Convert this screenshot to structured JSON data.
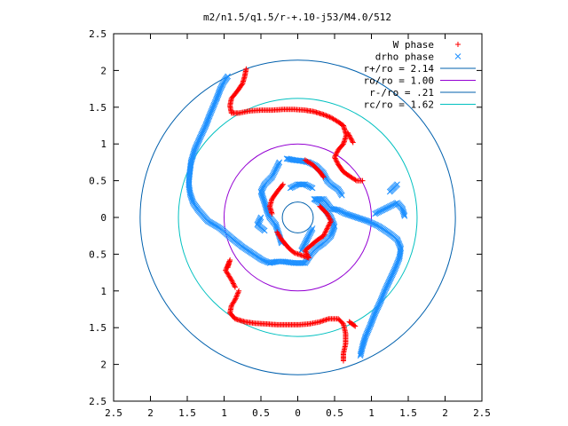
{
  "chart_data": {
    "type": "scatter",
    "title": "m2/n1.5/q1.5/r-+.10-j53/M4.0/512",
    "xlabel": "",
    "ylabel": "",
    "xlim": [
      -2.5,
      2.5
    ],
    "ylim": [
      -2.5,
      2.5
    ],
    "x_ticks": [
      -2.5,
      -2,
      -1.5,
      -1,
      -0.5,
      0,
      0.5,
      1,
      1.5,
      2,
      2.5
    ],
    "x_tick_labels": [
      "2.5",
      "2",
      "1.5",
      "1",
      "0.5",
      "0",
      "0.5",
      "1",
      "1.5",
      "2",
      "2.5"
    ],
    "y_ticks": [
      2.5,
      2,
      1.5,
      1,
      0.5,
      0,
      -0.5,
      -1,
      -1.5,
      -2,
      -2.5
    ],
    "y_tick_labels": [
      "2.5",
      "2",
      "1.5",
      "1",
      "0.5",
      "0",
      "0.5",
      "1",
      "1.5",
      "2",
      "2.5"
    ],
    "grid": false,
    "legend_position": "top-right",
    "legend": [
      {
        "label": "W phase",
        "symbol": "plus",
        "color": "#ff0000"
      },
      {
        "label": "drho phase",
        "symbol": "cross",
        "color": "#1e90ff"
      },
      {
        "label": "r+/ro = 2.14",
        "symbol": "line",
        "color": "#0060ad"
      },
      {
        "label": "ro/ro = 1.00",
        "symbol": "line",
        "color": "#9400d3"
      },
      {
        "label": "r-/ro = .21",
        "symbol": "line",
        "color": "#0060ad"
      },
      {
        "label": "rc/ro = 1.62",
        "symbol": "line",
        "color": "#00c0c0"
      }
    ],
    "circles": [
      {
        "radius": 2.14,
        "color": "#0060ad"
      },
      {
        "radius": 1.0,
        "color": "#9400d3"
      },
      {
        "radius": 0.21,
        "color": "#0060ad"
      },
      {
        "radius": 1.62,
        "color": "#00c0c0"
      }
    ],
    "series": [
      {
        "name": "drho phase",
        "symbol": "cross",
        "color": "#1e90ff",
        "points": [
          [
            -0.95,
            1.92
          ],
          [
            -1.0,
            1.85
          ],
          [
            -1.05,
            1.75
          ],
          [
            -1.1,
            1.62
          ],
          [
            -1.15,
            1.5
          ],
          [
            -1.2,
            1.38
          ],
          [
            -1.25,
            1.25
          ],
          [
            -1.32,
            1.1
          ],
          [
            -1.4,
            0.92
          ],
          [
            -1.45,
            0.75
          ],
          [
            -1.47,
            0.58
          ],
          [
            -1.48,
            0.45
          ],
          [
            -1.46,
            0.32
          ],
          [
            -1.42,
            0.2
          ],
          [
            -1.35,
            0.1
          ],
          [
            -1.22,
            -0.05
          ],
          [
            -1.05,
            -0.15
          ],
          [
            -0.9,
            -0.28
          ],
          [
            -0.75,
            -0.4
          ],
          [
            -0.6,
            -0.5
          ],
          [
            -0.48,
            -0.58
          ],
          [
            -0.38,
            -0.62
          ],
          [
            -0.28,
            -0.6
          ],
          [
            -0.2,
            -0.6
          ],
          [
            -0.05,
            -0.62
          ],
          [
            0.1,
            -0.62
          ],
          [
            0.18,
            -0.5
          ],
          [
            0.25,
            -0.42
          ],
          [
            0.35,
            -0.35
          ],
          [
            0.45,
            -0.25
          ],
          [
            0.5,
            -0.12
          ],
          [
            0.45,
            0.0
          ],
          [
            0.38,
            0.1
          ],
          [
            0.3,
            0.2
          ],
          [
            0.22,
            0.25
          ],
          [
            0.35,
            0.25
          ],
          [
            0.45,
            0.12
          ],
          [
            0.55,
            0.1
          ],
          [
            0.65,
            0.05
          ],
          [
            0.8,
            0.0
          ],
          [
            0.95,
            -0.05
          ],
          [
            1.1,
            -0.12
          ],
          [
            1.25,
            -0.22
          ],
          [
            1.35,
            -0.3
          ],
          [
            1.4,
            -0.42
          ],
          [
            1.38,
            -0.55
          ],
          [
            1.32,
            -0.7
          ],
          [
            1.25,
            -0.85
          ],
          [
            1.18,
            -1.0
          ],
          [
            1.12,
            -1.15
          ],
          [
            1.05,
            -1.3
          ],
          [
            0.98,
            -1.48
          ],
          [
            0.92,
            -1.62
          ],
          [
            0.88,
            -1.75
          ],
          [
            0.85,
            -1.88
          ],
          [
            1.45,
            0.02
          ],
          [
            1.42,
            0.12
          ],
          [
            1.35,
            0.2
          ],
          [
            1.25,
            0.15
          ],
          [
            1.15,
            0.1
          ],
          [
            1.05,
            0.05
          ],
          [
            1.25,
            0.35
          ],
          [
            1.35,
            0.45
          ],
          [
            -0.15,
            0.8
          ],
          [
            -0.05,
            0.78
          ],
          [
            0.05,
            0.77
          ],
          [
            0.15,
            0.75
          ],
          [
            0.25,
            0.7
          ],
          [
            0.35,
            0.6
          ],
          [
            0.4,
            0.5
          ],
          [
            0.45,
            0.45
          ],
          [
            0.55,
            0.38
          ],
          [
            0.6,
            0.3
          ],
          [
            -0.25,
            0.75
          ],
          [
            -0.3,
            0.65
          ],
          [
            -0.35,
            0.55
          ],
          [
            -0.45,
            0.45
          ],
          [
            -0.5,
            0.35
          ],
          [
            -0.45,
            0.2
          ],
          [
            -0.42,
            0.1
          ],
          [
            -0.38,
            0.0
          ],
          [
            -0.3,
            -0.1
          ],
          [
            -0.25,
            -0.25
          ],
          [
            -0.22,
            -0.35
          ],
          [
            -0.5,
            0.0
          ],
          [
            -0.55,
            -0.1
          ],
          [
            -0.45,
            -0.18
          ],
          [
            0.05,
            -0.45
          ],
          [
            0.1,
            -0.35
          ],
          [
            0.15,
            -0.25
          ],
          [
            0.2,
            -0.15
          ],
          [
            -0.1,
            0.4
          ],
          [
            0.0,
            0.45
          ],
          [
            0.1,
            0.45
          ],
          [
            0.2,
            0.4
          ]
        ]
      },
      {
        "name": "W phase",
        "symbol": "plus",
        "color": "#ff0000",
        "points": [
          [
            -0.7,
            2.02
          ],
          [
            -0.72,
            1.92
          ],
          [
            -0.75,
            1.82
          ],
          [
            -0.82,
            1.72
          ],
          [
            -0.9,
            1.62
          ],
          [
            -0.92,
            1.52
          ],
          [
            -0.9,
            1.42
          ],
          [
            -0.8,
            1.42
          ],
          [
            -0.65,
            1.45
          ],
          [
            -0.5,
            1.46
          ],
          [
            -0.35,
            1.46
          ],
          [
            -0.2,
            1.47
          ],
          [
            -0.05,
            1.47
          ],
          [
            0.1,
            1.46
          ],
          [
            0.22,
            1.44
          ],
          [
            0.35,
            1.4
          ],
          [
            0.45,
            1.36
          ],
          [
            0.55,
            1.3
          ],
          [
            0.62,
            1.25
          ],
          [
            0.66,
            1.12
          ],
          [
            0.62,
            1.0
          ],
          [
            0.55,
            0.92
          ],
          [
            0.5,
            0.82
          ],
          [
            0.55,
            0.72
          ],
          [
            0.62,
            0.62
          ],
          [
            0.72,
            0.55
          ],
          [
            0.8,
            0.5
          ],
          [
            0.88,
            0.5
          ],
          [
            0.75,
            1.02
          ],
          [
            0.68,
            1.15
          ],
          [
            -0.8,
            -1.0
          ],
          [
            -0.85,
            -1.12
          ],
          [
            -0.9,
            -1.2
          ],
          [
            -0.92,
            -1.3
          ],
          [
            -0.85,
            -1.38
          ],
          [
            -0.72,
            -1.42
          ],
          [
            -0.58,
            -1.44
          ],
          [
            -0.42,
            -1.45
          ],
          [
            -0.28,
            -1.46
          ],
          [
            -0.12,
            -1.46
          ],
          [
            0.02,
            -1.46
          ],
          [
            0.15,
            -1.45
          ],
          [
            0.3,
            -1.42
          ],
          [
            0.42,
            -1.38
          ],
          [
            0.55,
            -1.38
          ],
          [
            0.62,
            -1.45
          ],
          [
            0.65,
            -1.58
          ],
          [
            0.65,
            -1.72
          ],
          [
            0.62,
            -1.85
          ],
          [
            0.62,
            -1.95
          ],
          [
            0.78,
            -1.48
          ],
          [
            0.7,
            -1.42
          ],
          [
            -0.95,
            -0.68
          ],
          [
            -0.92,
            -0.58
          ],
          [
            -0.98,
            -0.72
          ],
          [
            -0.9,
            -0.85
          ],
          [
            -0.85,
            -0.95
          ],
          [
            -0.2,
            0.45
          ],
          [
            -0.28,
            0.35
          ],
          [
            -0.35,
            0.25
          ],
          [
            -0.38,
            0.15
          ],
          [
            -0.35,
            0.05
          ],
          [
            0.1,
            0.78
          ],
          [
            0.2,
            0.72
          ],
          [
            0.3,
            0.62
          ],
          [
            0.35,
            0.55
          ],
          [
            0.3,
            0.15
          ],
          [
            0.4,
            0.05
          ],
          [
            0.45,
            -0.05
          ],
          [
            0.4,
            -0.15
          ],
          [
            0.35,
            -0.25
          ],
          [
            0.25,
            -0.32
          ],
          [
            0.1,
            -0.45
          ],
          [
            0.15,
            -0.55
          ],
          [
            -0.05,
            -0.48
          ],
          [
            -0.12,
            -0.42
          ],
          [
            -0.22,
            -0.3
          ],
          [
            -0.28,
            -0.2
          ]
        ]
      }
    ]
  }
}
